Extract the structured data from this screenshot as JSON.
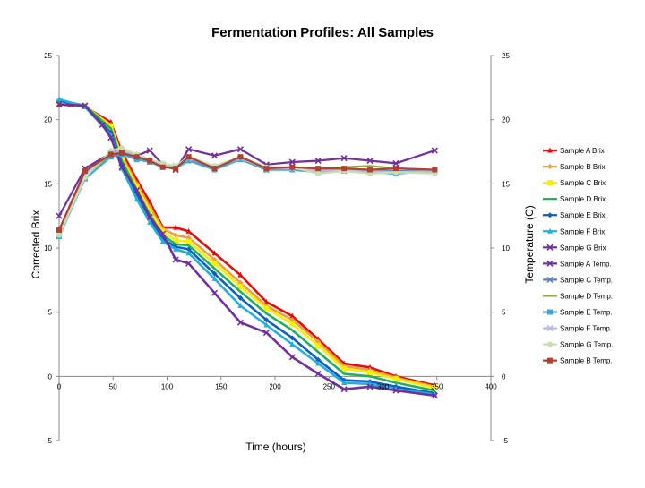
{
  "chart_data": {
    "type": "line",
    "title": "Fermentation Profiles:  All Samples",
    "xlabel": "Time (hours)",
    "ylabel": "Corrected Brix",
    "y2label": "Temperature (C)",
    "xlim": [
      0,
      400
    ],
    "ylim": [
      -5,
      25
    ],
    "y2lim": [
      -5,
      25
    ],
    "x_ticks": [
      0,
      50,
      100,
      150,
      200,
      250,
      300,
      350,
      400
    ],
    "x_tick_labels": [
      "0",
      "50",
      "100",
      "150",
      "200",
      "250",
      "300",
      "350",
      "400"
    ],
    "y_ticks": [
      -5,
      0,
      5,
      10,
      15,
      20,
      25
    ],
    "y_tick_labels": [
      "-5",
      "0",
      "5",
      "10",
      "15",
      "20",
      "25"
    ],
    "y2_ticks": [
      -5,
      0,
      5,
      10,
      15,
      20,
      25
    ],
    "y2_tick_labels": [
      "-5",
      "0",
      "5",
      "10",
      "15",
      "20",
      "25"
    ],
    "grid": false,
    "legend_position": "right",
    "series": [
      {
        "name": "Sample A Brix",
        "color": "#e01010",
        "marker": "triangle",
        "axis": "left",
        "x": [
          0,
          24,
          48,
          58,
          72,
          84,
          96,
          108,
          120,
          144,
          168,
          192,
          216,
          240,
          264,
          288,
          312,
          348
        ],
        "y": [
          21.2,
          21.0,
          19.8,
          17.5,
          15.3,
          13.6,
          11.6,
          11.6,
          11.3,
          9.6,
          7.9,
          5.8,
          4.7,
          2.9,
          1.0,
          0.7,
          0.0,
          -0.7
        ]
      },
      {
        "name": "Sample B Brix",
        "color": "#f0a040",
        "marker": "diamond",
        "axis": "left",
        "x": [
          0,
          24,
          48,
          58,
          72,
          84,
          96,
          108,
          120,
          144,
          168,
          192,
          216,
          240,
          264,
          288,
          312,
          348
        ],
        "y": [
          21.3,
          21.0,
          19.6,
          17.2,
          15.0,
          13.2,
          11.5,
          11.0,
          10.8,
          9.1,
          7.3,
          5.5,
          4.4,
          2.7,
          0.8,
          0.5,
          -0.1,
          -0.8
        ]
      },
      {
        "name": "Sample C Brix",
        "color": "#f5f000",
        "marker": "square",
        "axis": "left",
        "x": [
          0,
          24,
          48,
          58,
          72,
          84,
          96,
          108,
          120,
          144,
          168,
          192,
          216,
          240,
          264,
          288,
          312,
          348
        ],
        "y": [
          21.4,
          21.1,
          19.5,
          17.0,
          14.8,
          12.9,
          11.3,
          10.6,
          10.5,
          8.8,
          7.0,
          5.3,
          4.1,
          2.4,
          0.6,
          0.3,
          -0.2,
          -0.9
        ]
      },
      {
        "name": "Sample D Brix",
        "color": "#20b060",
        "marker": "none",
        "axis": "left",
        "x": [
          0,
          24,
          48,
          58,
          72,
          84,
          96,
          108,
          120,
          144,
          168,
          192,
          216,
          240,
          264,
          288,
          312,
          348
        ],
        "y": [
          21.5,
          21.1,
          19.3,
          16.8,
          14.5,
          12.6,
          11.0,
          10.3,
          10.2,
          8.4,
          6.6,
          4.9,
          3.6,
          1.9,
          0.2,
          0.0,
          -0.5,
          -1.1
        ]
      },
      {
        "name": "Sample E Brix",
        "color": "#1060c0",
        "marker": "diamond",
        "axis": "left",
        "x": [
          0,
          24,
          48,
          58,
          72,
          84,
          96,
          108,
          120,
          144,
          168,
          192,
          216,
          240,
          264,
          288,
          312,
          348
        ],
        "y": [
          21.5,
          21.0,
          19.0,
          16.5,
          14.2,
          12.3,
          10.7,
          10.1,
          9.9,
          8.0,
          6.1,
          4.4,
          3.0,
          1.3,
          -0.3,
          -0.4,
          -0.8,
          -1.3
        ]
      },
      {
        "name": "Sample F Brix",
        "color": "#20b0e0",
        "marker": "triangle",
        "axis": "left",
        "x": [
          0,
          24,
          48,
          58,
          72,
          84,
          96,
          108,
          120,
          144,
          168,
          192,
          216,
          240,
          264,
          288,
          312,
          348
        ],
        "y": [
          21.6,
          21.0,
          18.8,
          16.2,
          13.8,
          12.0,
          10.5,
          9.9,
          9.6,
          7.6,
          5.5,
          4.0,
          2.5,
          1.0,
          -0.5,
          -0.6,
          -1.0,
          -1.4
        ]
      },
      {
        "name": "Sample G Brix",
        "color": "#7030a0",
        "marker": "x",
        "axis": "left",
        "x": [
          0,
          24,
          40,
          48,
          58,
          72,
          84,
          96,
          108,
          120,
          144,
          168,
          192,
          216,
          240,
          264,
          288,
          312,
          348
        ],
        "y": [
          21.2,
          21.1,
          19.6,
          18.6,
          16.3,
          14.5,
          12.4,
          11.1,
          9.1,
          8.8,
          6.5,
          4.2,
          3.4,
          1.5,
          0.2,
          -1.0,
          -0.8,
          -1.1,
          -1.5
        ]
      },
      {
        "name": "Sample A Temp.",
        "color": "#7030a0",
        "marker": "x",
        "axis": "right",
        "x": [
          0,
          24,
          48,
          58,
          72,
          84,
          96,
          108,
          120,
          144,
          168,
          192,
          216,
          240,
          264,
          288,
          312,
          348
        ],
        "y": [
          12.5,
          16.2,
          17.4,
          17.5,
          17.2,
          17.6,
          16.5,
          16.1,
          17.7,
          17.2,
          17.7,
          16.5,
          16.7,
          16.8,
          17.0,
          16.8,
          16.6,
          17.6
        ]
      },
      {
        "name": "Sample C Temp.",
        "color": "#6080c0",
        "marker": "x",
        "axis": "right",
        "x": [
          0,
          24,
          48,
          58,
          72,
          84,
          96,
          108,
          120,
          144,
          168,
          192,
          216,
          240,
          264,
          288,
          312,
          348
        ],
        "y": [
          11.2,
          15.8,
          17.2,
          17.4,
          17.0,
          16.7,
          16.4,
          16.3,
          16.9,
          16.2,
          16.9,
          16.1,
          16.2,
          16.0,
          16.1,
          16.0,
          16.0,
          16.0
        ]
      },
      {
        "name": "Sample D Temp.",
        "color": "#8bb040",
        "marker": "none",
        "axis": "right",
        "x": [
          0,
          24,
          48,
          58,
          72,
          84,
          96,
          108,
          120,
          144,
          168,
          192,
          216,
          240,
          264,
          288,
          312,
          348
        ],
        "y": [
          11.0,
          15.6,
          17.3,
          17.5,
          17.1,
          16.8,
          16.4,
          16.2,
          17.0,
          16.3,
          17.0,
          16.2,
          16.3,
          16.1,
          16.3,
          16.4,
          16.2,
          16.1
        ]
      },
      {
        "name": "Sample E Temp.",
        "color": "#40a8d8",
        "marker": "square",
        "axis": "right",
        "x": [
          0,
          24,
          48,
          58,
          72,
          84,
          96,
          108,
          120,
          144,
          168,
          192,
          216,
          240,
          264,
          288,
          312,
          348
        ],
        "y": [
          10.9,
          15.4,
          17.1,
          17.3,
          16.9,
          16.7,
          16.3,
          16.2,
          16.8,
          16.1,
          16.9,
          16.1,
          16.1,
          15.9,
          16.0,
          15.9,
          15.8,
          16.0
        ]
      },
      {
        "name": "Sample F Temp.",
        "color": "#b8b8e0",
        "marker": "x",
        "axis": "right",
        "x": [
          0,
          24,
          48,
          58,
          72,
          84,
          96,
          108,
          120,
          144,
          168,
          192,
          216,
          240,
          264,
          288,
          312,
          348
        ],
        "y": [
          11.1,
          15.7,
          17.4,
          17.6,
          17.2,
          16.8,
          16.5,
          16.4,
          17.0,
          16.3,
          17.0,
          16.2,
          16.2,
          16.0,
          16.1,
          16.0,
          15.9,
          16.0
        ]
      },
      {
        "name": "Sample G Temp.",
        "color": "#c8e0b0",
        "marker": "circle",
        "axis": "right",
        "x": [
          0,
          24,
          48,
          58,
          72,
          84,
          96,
          108,
          120,
          144,
          168,
          192,
          216,
          240,
          264,
          288,
          312,
          348
        ],
        "y": [
          11.0,
          15.5,
          17.6,
          17.8,
          17.3,
          16.9,
          16.6,
          16.4,
          17.1,
          16.4,
          17.1,
          16.3,
          16.3,
          15.8,
          16.0,
          15.8,
          15.9,
          15.8
        ]
      },
      {
        "name": "Sample B Temp.",
        "color": "#b04030",
        "marker": "square",
        "axis": "right",
        "x": [
          0,
          24,
          48,
          58,
          72,
          84,
          96,
          108,
          120,
          144,
          168,
          192,
          216,
          240,
          264,
          288,
          312,
          348
        ],
        "y": [
          11.4,
          16.0,
          17.3,
          17.4,
          17.1,
          16.8,
          16.3,
          16.2,
          17.1,
          16.2,
          17.1,
          16.2,
          16.3,
          16.2,
          16.2,
          16.1,
          16.2,
          16.1
        ]
      }
    ]
  }
}
